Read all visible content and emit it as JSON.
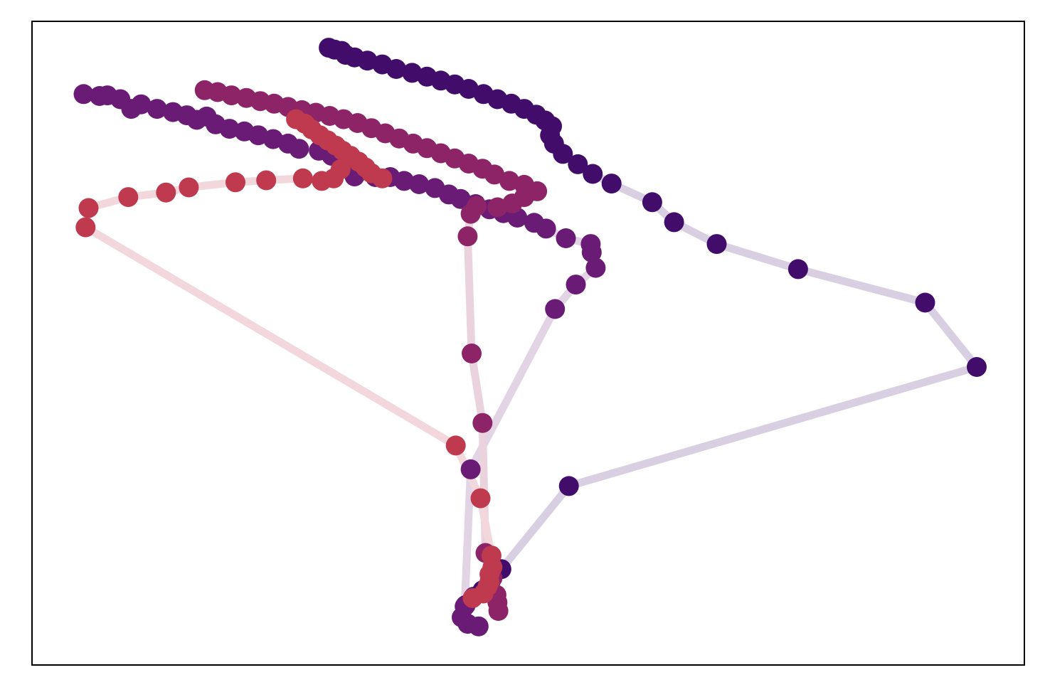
{
  "chart_data": {
    "type": "scatter",
    "title": "",
    "xlabel": "",
    "ylabel": "",
    "xticks": [],
    "yticks": [],
    "grid": false,
    "legend": "none",
    "xlim": [
      0,
      100
    ],
    "ylim": [
      0,
      100
    ],
    "series": [
      {
        "color": "#420d6a",
        "line_color": "#d8cfe2",
        "points": [
          [
            29.9,
            95.9
          ],
          [
            30.5,
            95.6
          ],
          [
            31.2,
            95.4
          ],
          [
            31.6,
            94.8
          ],
          [
            32.5,
            94.4
          ],
          [
            33.8,
            93.9
          ],
          [
            35.3,
            93.3
          ],
          [
            36.7,
            92.6
          ],
          [
            38.3,
            92.0
          ],
          [
            39.8,
            91.4
          ],
          [
            41.2,
            90.8
          ],
          [
            42.6,
            90.2
          ],
          [
            44.0,
            89.5
          ],
          [
            45.5,
            88.7
          ],
          [
            46.9,
            87.9
          ],
          [
            48.3,
            87.2
          ],
          [
            49.6,
            86.4
          ],
          [
            50.8,
            85.5
          ],
          [
            51.7,
            84.6
          ],
          [
            52.4,
            83.7
          ],
          [
            52.2,
            82.3
          ],
          [
            52.6,
            81.0
          ],
          [
            53.5,
            79.4
          ],
          [
            55.0,
            77.8
          ],
          [
            56.5,
            76.3
          ],
          [
            58.4,
            74.8
          ],
          [
            62.5,
            71.9
          ],
          [
            64.7,
            68.8
          ],
          [
            69.0,
            65.4
          ],
          [
            77.2,
            61.5
          ],
          [
            90.0,
            56.3
          ],
          [
            95.2,
            46.3
          ],
          [
            54.1,
            27.8
          ],
          [
            47.3,
            14.9
          ],
          [
            46.2,
            12.9
          ],
          [
            45.4,
            11.6
          ],
          [
            44.5,
            10.6
          ],
          [
            43.7,
            9.3
          ]
        ]
      },
      {
        "color": "#6a1b75",
        "line_color": "#e2d4e5",
        "points": [
          [
            5.2,
            88.7
          ],
          [
            6.8,
            88.4
          ],
          [
            7.6,
            88.5
          ],
          [
            8.9,
            87.9
          ],
          [
            10.0,
            86.4
          ],
          [
            11.0,
            87.1
          ],
          [
            12.6,
            86.4
          ],
          [
            14.2,
            85.9
          ],
          [
            15.6,
            85.4
          ],
          [
            16.6,
            84.7
          ],
          [
            17.6,
            85.2
          ],
          [
            18.5,
            84.0
          ],
          [
            19.9,
            83.3
          ],
          [
            21.4,
            82.9
          ],
          [
            22.8,
            82.3
          ],
          [
            24.3,
            81.7
          ],
          [
            25.8,
            81.0
          ],
          [
            26.9,
            80.2
          ],
          [
            28.9,
            79.9
          ],
          [
            30.2,
            79.1
          ],
          [
            31.4,
            77.3
          ],
          [
            32.5,
            75.9
          ],
          [
            34.6,
            75.8
          ],
          [
            36.1,
            75.8
          ],
          [
            37.5,
            75.2
          ],
          [
            39.0,
            74.7
          ],
          [
            40.6,
            74.1
          ],
          [
            42.0,
            73.1
          ],
          [
            43.2,
            72.4
          ],
          [
            44.7,
            71.6
          ],
          [
            46.1,
            70.8
          ],
          [
            47.5,
            70.2
          ],
          [
            48.9,
            69.5
          ],
          [
            50.6,
            68.7
          ],
          [
            51.8,
            67.8
          ],
          [
            53.8,
            66.3
          ],
          [
            56.3,
            65.4
          ],
          [
            56.4,
            64.1
          ],
          [
            56.8,
            61.7
          ],
          [
            54.8,
            59.1
          ],
          [
            52.7,
            55.3
          ],
          [
            44.2,
            30.4
          ],
          [
            43.6,
            9.1
          ],
          [
            43.3,
            7.4
          ],
          [
            43.9,
            6.4
          ],
          [
            45.0,
            6.0
          ]
        ]
      },
      {
        "color": "#8e2468",
        "line_color": "#ebd3de",
        "points": [
          [
            17.4,
            89.3
          ],
          [
            18.7,
            89.0
          ],
          [
            20.1,
            88.5
          ],
          [
            21.6,
            88.1
          ],
          [
            23.0,
            87.6
          ],
          [
            24.4,
            87.2
          ],
          [
            25.8,
            86.7
          ],
          [
            27.2,
            86.2
          ],
          [
            28.6,
            85.8
          ],
          [
            30.0,
            85.3
          ],
          [
            31.4,
            84.8
          ],
          [
            32.8,
            84.2
          ],
          [
            34.2,
            83.4
          ],
          [
            35.6,
            82.6
          ],
          [
            37.0,
            81.8
          ],
          [
            38.4,
            81.0
          ],
          [
            39.8,
            80.3
          ],
          [
            41.2,
            79.5
          ],
          [
            42.6,
            78.7
          ],
          [
            44.0,
            77.9
          ],
          [
            45.4,
            77.1
          ],
          [
            46.6,
            76.2
          ],
          [
            48.1,
            75.2
          ],
          [
            49.6,
            74.6
          ],
          [
            50.9,
            73.6
          ],
          [
            49.6,
            72.7
          ],
          [
            48.4,
            71.7
          ],
          [
            46.9,
            71.1
          ],
          [
            44.8,
            71.3
          ],
          [
            44.2,
            70.1
          ],
          [
            43.9,
            66.6
          ],
          [
            44.3,
            48.4
          ],
          [
            45.4,
            37.6
          ],
          [
            45.7,
            17.4
          ],
          [
            46.4,
            13.5
          ],
          [
            46.8,
            10.9
          ],
          [
            46.9,
            9.7
          ],
          [
            47.0,
            8.4
          ]
        ]
      },
      {
        "color": "#bf3a4f",
        "line_color": "#f2d8dc",
        "points": [
          [
            26.6,
            84.8
          ],
          [
            27.5,
            84.1
          ],
          [
            28.2,
            83.2
          ],
          [
            29.0,
            82.3
          ],
          [
            29.8,
            81.5
          ],
          [
            30.6,
            80.7
          ],
          [
            31.3,
            79.9
          ],
          [
            32.1,
            79.1
          ],
          [
            32.9,
            78.2
          ],
          [
            33.6,
            77.3
          ],
          [
            34.2,
            76.4
          ],
          [
            35.3,
            75.6
          ],
          [
            31.1,
            77.0
          ],
          [
            30.4,
            75.6
          ],
          [
            29.2,
            75.2
          ],
          [
            27.3,
            75.6
          ],
          [
            23.6,
            75.3
          ],
          [
            20.5,
            75.0
          ],
          [
            15.8,
            74.2
          ],
          [
            13.5,
            73.4
          ],
          [
            9.7,
            72.7
          ],
          [
            5.7,
            71.0
          ],
          [
            5.4,
            68.0
          ],
          [
            42.7,
            34.1
          ],
          [
            45.2,
            25.9
          ],
          [
            46.3,
            17.0
          ],
          [
            46.4,
            15.2
          ],
          [
            46.1,
            14.1
          ],
          [
            46.1,
            12.9
          ],
          [
            45.9,
            12.2
          ],
          [
            45.5,
            11.1
          ],
          [
            44.4,
            10.4
          ]
        ]
      }
    ]
  }
}
